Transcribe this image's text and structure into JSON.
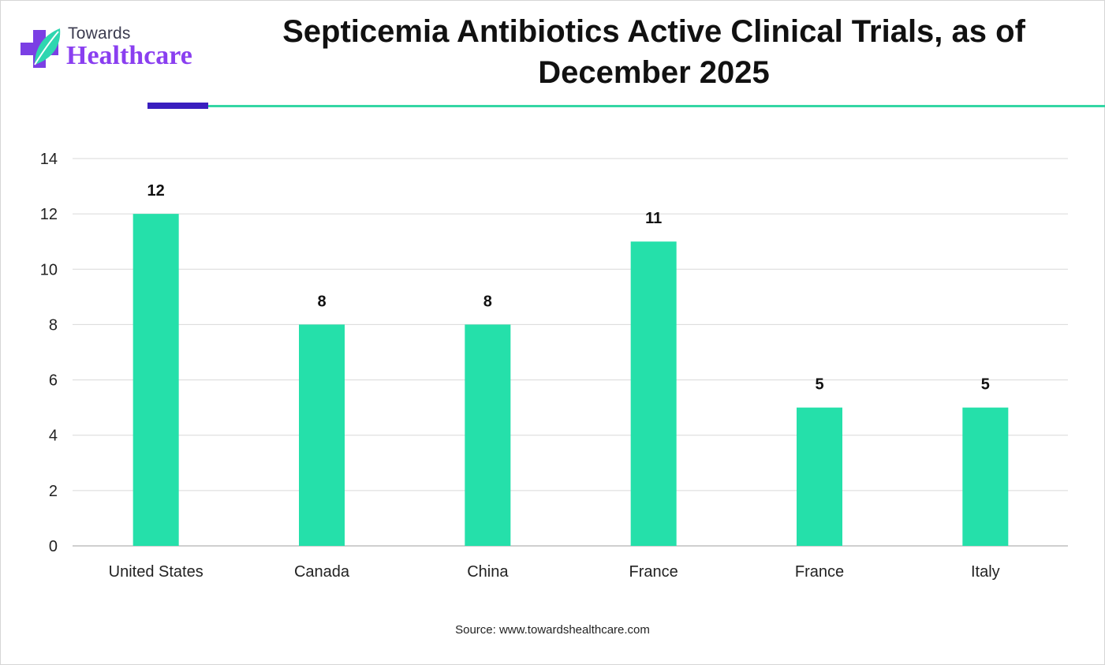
{
  "brand": {
    "name_top": "Towards",
    "name_bottom": "Healthcare"
  },
  "colors": {
    "bar": "#25e0aa",
    "accent": "#3a1fbf",
    "rule": "#34d6a4",
    "brand_purple": "#8a3ff0",
    "grid": "#d9d9d9",
    "axis": "#bfbfbf"
  },
  "chart_data": {
    "type": "bar",
    "title": "Septicemia Antibiotics Active Clinical Trials, as of December 2025",
    "categories": [
      "United States",
      "Canada",
      "China",
      "France",
      "France",
      "Italy"
    ],
    "values": [
      12,
      8,
      8,
      11,
      5,
      5
    ],
    "ylim": [
      0,
      14
    ],
    "yticks": [
      0,
      2,
      4,
      6,
      8,
      10,
      12,
      14
    ],
    "grid": true,
    "data_labels": true,
    "legend": "none"
  },
  "source": "Source: www.towardshealthcare.com"
}
